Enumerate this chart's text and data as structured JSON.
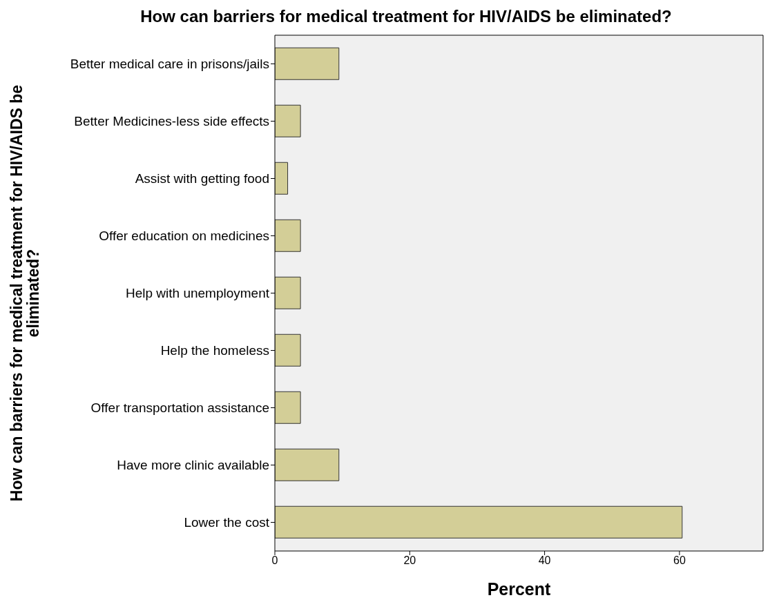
{
  "chart_data": {
    "type": "bar",
    "orientation": "horizontal",
    "title": "How can barriers for medical treatment for HIV/AIDS be eliminated?",
    "xlabel": "Percent",
    "ylabel": "How can barriers for medical treatment for HIV/AIDS be eliminated?",
    "categories": [
      "Better medical care in prisons/jails",
      "Better Medicines-less side effects",
      "Assist with getting food",
      "Offer education on medicines",
      "Help with unemployment",
      "Help the homeless",
      "Offer transportation assistance",
      "Have more clinic available",
      "Lower the cost"
    ],
    "values": [
      9.5,
      3.8,
      1.9,
      3.8,
      3.8,
      3.8,
      3.8,
      9.5,
      60.4
    ],
    "color": "#d3ce97",
    "xlim": [
      0,
      72.4
    ],
    "xticks": [
      0,
      20,
      40,
      60
    ],
    "grid": false
  }
}
